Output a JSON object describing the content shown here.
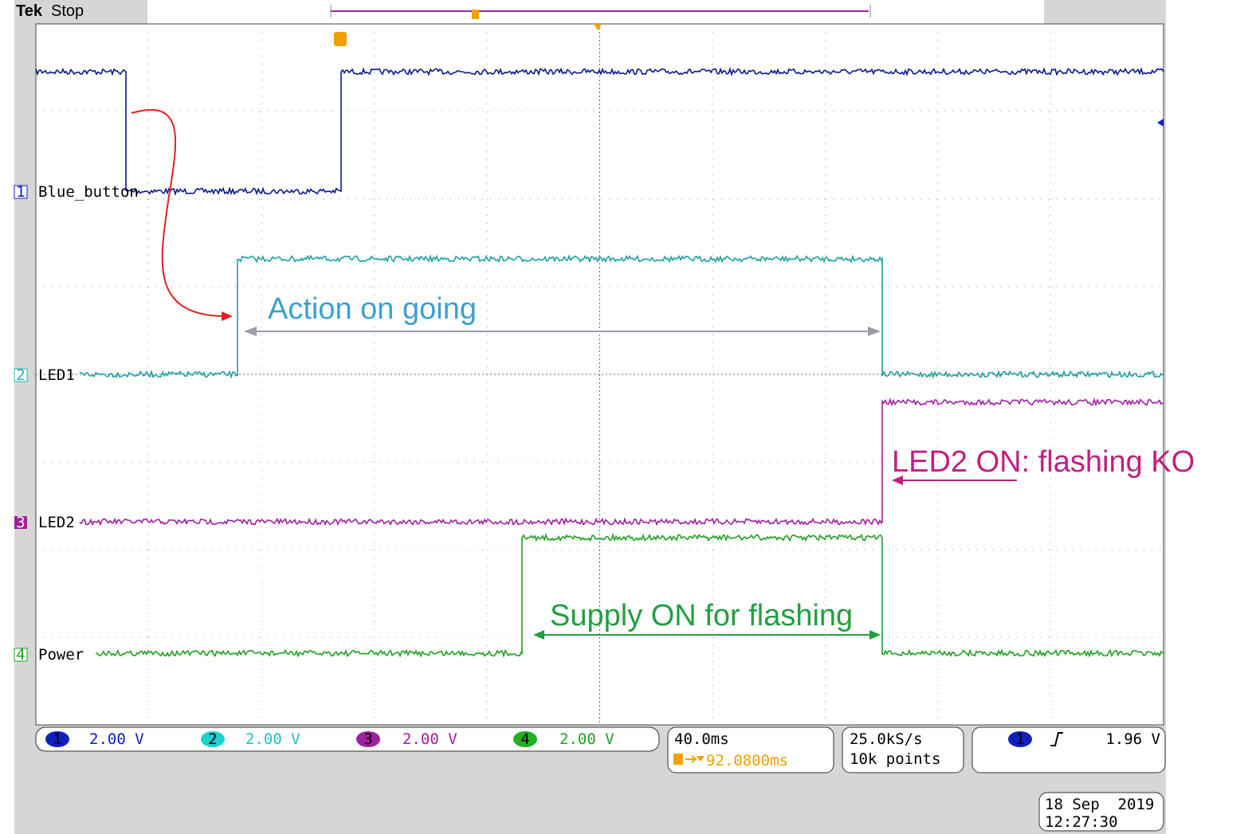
{
  "header": {
    "brand": "Tek",
    "status": "Stop"
  },
  "channels": [
    {
      "number": "1",
      "label": "Blue_button",
      "scale": "2.00 V"
    },
    {
      "number": "2",
      "label": "LED1",
      "scale": "2.00 V"
    },
    {
      "number": "3",
      "label": "LED2",
      "scale": "2.00 V"
    },
    {
      "number": "4",
      "label": "Power",
      "scale": "2.00 V"
    }
  ],
  "annotations": {
    "action": "Action on going",
    "led2": "LED2 ON: flashing KO",
    "supply": "Supply ON for flashing"
  },
  "readouts": {
    "timebase": "40.0ms",
    "trigger_position": "92.0800ms",
    "sample_rate": "25.0kS/s",
    "record_length": "10k points",
    "trigger_source": "1",
    "trigger_level": "1.96 V"
  },
  "timestamp": {
    "date": "18 Sep  2019",
    "time": "12:27:30"
  }
}
